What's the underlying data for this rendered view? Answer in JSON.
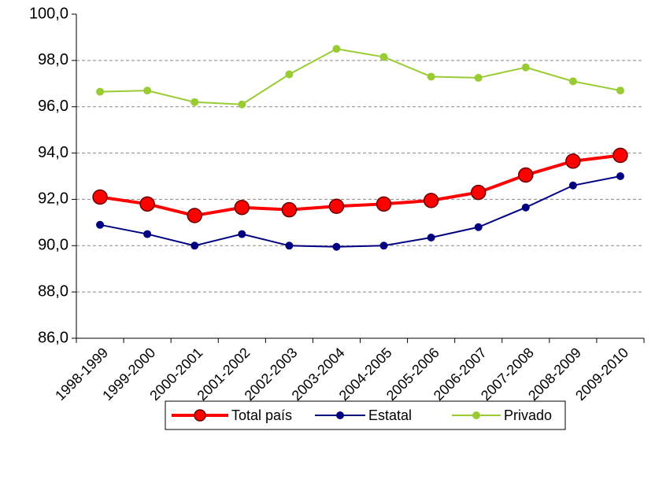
{
  "chart_data": {
    "type": "line",
    "categories": [
      "1998-1999",
      "1999-2000",
      "2000-2001",
      "2001-2002",
      "2002-2003",
      "2003-2004",
      "2004-2005",
      "2005-2006",
      "2006-2007",
      "2007-2008",
      "2008-2009",
      "2009-2010"
    ],
    "series": [
      {
        "name": "Total país",
        "color": "#ff0000",
        "values": [
          92.1,
          91.8,
          91.3,
          91.65,
          91.55,
          91.7,
          91.8,
          91.95,
          92.3,
          93.05,
          93.65,
          93.9
        ]
      },
      {
        "name": "Estatal",
        "color": "#000080",
        "values": [
          90.9,
          90.5,
          90.0,
          90.5,
          90.0,
          89.95,
          90.0,
          90.35,
          90.8,
          91.65,
          92.6,
          93.0
        ]
      },
      {
        "name": "Privado",
        "color": "#99cc33",
        "values": [
          96.65,
          96.7,
          96.2,
          96.1,
          97.4,
          98.5,
          98.15,
          97.3,
          97.25,
          97.7,
          97.1,
          96.7
        ]
      }
    ],
    "ylim": [
      86,
      100
    ],
    "yticks": [
      {
        "value": 86,
        "label": "86,0"
      },
      {
        "value": 88,
        "label": "88,0"
      },
      {
        "value": 90,
        "label": "90,0"
      },
      {
        "value": 92,
        "label": "92,0"
      },
      {
        "value": 94,
        "label": "94,0"
      },
      {
        "value": 96,
        "label": "96,0"
      },
      {
        "value": 98,
        "label": "98,0"
      },
      {
        "value": 100,
        "label": "100,0"
      }
    ],
    "grid": true,
    "legend": "bottom"
  }
}
